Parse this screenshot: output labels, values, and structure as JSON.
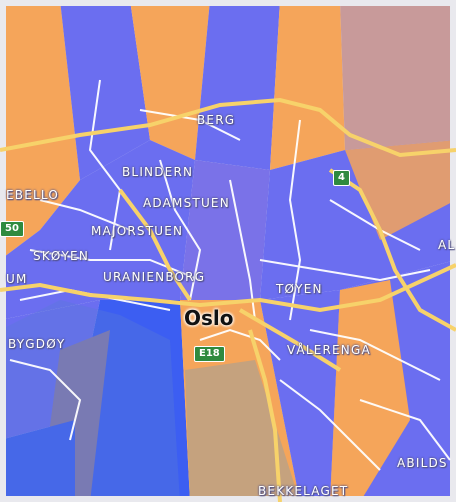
{
  "map": {
    "city_label": "Oslo",
    "districts": [
      "BERG",
      "BLINDERN",
      "ADAMSTUEN",
      "MAJORSTUEN",
      "SKØYEN",
      "URANIENBORG",
      "TØYEN",
      "BYGDØY",
      "VÅLERENGA",
      "BEKKELAGET",
      "EBELLO",
      "UM",
      "ABILDS",
      "AL"
    ],
    "road_shields": [
      "4",
      "E18",
      "50"
    ],
    "colors": {
      "overlay_orange": "#f5a55a",
      "overlay_blue": "#6b6ef0",
      "overlay_deepblue": "#3c5ef2",
      "overlay_rose": "#c89a9a",
      "overlay_tan": "#c5a27e",
      "road_major": "#f7d26a",
      "road_minor": "#ffffff",
      "shield_green": "#2f8a3f"
    }
  }
}
